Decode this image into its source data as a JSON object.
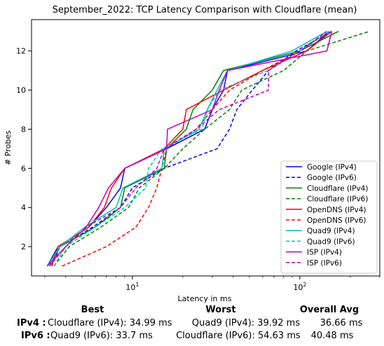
{
  "chart_data": {
    "type": "line",
    "title": "September_2022: TCP Latency Comparison with Cloudflare (mean)",
    "xlabel": "Latency in ms",
    "ylabel": "# Probes",
    "xscale": "log",
    "xlim": [
      2.5,
      300
    ],
    "ylim": [
      0.5,
      13.6
    ],
    "xticks": [
      {
        "value": 10,
        "label": "10^1"
      },
      {
        "value": 100,
        "label": "10^2"
      }
    ],
    "yticks": [
      2,
      4,
      6,
      8,
      10,
      12
    ],
    "grid": false,
    "legend_position": "lower-right",
    "series": [
      {
        "name": "Google (IPv4)",
        "color": "#0000ff",
        "dash": false,
        "points": [
          [
            3.1,
            1
          ],
          [
            3.6,
            2
          ],
          [
            5.5,
            3
          ],
          [
            7,
            4
          ],
          [
            8.5,
            5
          ],
          [
            9,
            6
          ],
          [
            16,
            7
          ],
          [
            27,
            8
          ],
          [
            30,
            9
          ],
          [
            35,
            10
          ],
          [
            37,
            11
          ],
          [
            110,
            12
          ],
          [
            150,
            13
          ]
        ]
      },
      {
        "name": "Google (IPv6)",
        "color": "#0000ff",
        "dash": true,
        "points": [
          [
            3.3,
            1
          ],
          [
            3.7,
            2
          ],
          [
            5.8,
            3
          ],
          [
            8.5,
            4
          ],
          [
            10,
            5
          ],
          [
            15.5,
            6
          ],
          [
            32,
            7
          ],
          [
            38,
            8
          ],
          [
            42,
            9
          ],
          [
            52,
            10
          ],
          [
            65,
            11
          ],
          [
            95,
            12
          ],
          [
            155,
            13
          ]
        ]
      },
      {
        "name": "Cloudflare (IPv4)",
        "color": "#008000",
        "dash": false,
        "points": [
          [
            3.2,
            1
          ],
          [
            3.7,
            2
          ],
          [
            6,
            3
          ],
          [
            8.5,
            4
          ],
          [
            9,
            5
          ],
          [
            15.5,
            6
          ],
          [
            16,
            7
          ],
          [
            21,
            8
          ],
          [
            23,
            9
          ],
          [
            30,
            10
          ],
          [
            35,
            11
          ],
          [
            100,
            12
          ],
          [
            170,
            13
          ]
        ]
      },
      {
        "name": "Cloudflare (IPv6)",
        "color": "#008000",
        "dash": true,
        "points": [
          [
            3.4,
            1
          ],
          [
            4.2,
            2
          ],
          [
            6.5,
            3
          ],
          [
            9.5,
            4
          ],
          [
            11,
            5
          ],
          [
            15.5,
            6
          ],
          [
            20,
            7
          ],
          [
            27,
            8
          ],
          [
            38,
            9
          ],
          [
            45,
            10
          ],
          [
            80,
            11
          ],
          [
            110,
            12
          ],
          [
            260,
            13
          ]
        ]
      },
      {
        "name": "OpenDNS (IPv4)",
        "color": "#ff0000",
        "dash": false,
        "points": [
          [
            3.3,
            1
          ],
          [
            3.6,
            2
          ],
          [
            5.5,
            3
          ],
          [
            6.8,
            4
          ],
          [
            7.5,
            5
          ],
          [
            9,
            6
          ],
          [
            15.5,
            7
          ],
          [
            20,
            8
          ],
          [
            21,
            9
          ],
          [
            35,
            10
          ],
          [
            60,
            11
          ],
          [
            110,
            12
          ],
          [
            155,
            13
          ]
        ]
      },
      {
        "name": "OpenDNS (IPv6)",
        "color": "#ff0000",
        "dash": true,
        "points": [
          [
            3.8,
            1
          ],
          [
            7,
            2
          ],
          [
            10.5,
            3
          ],
          [
            12.5,
            4
          ],
          [
            14,
            5
          ],
          [
            15,
            6
          ],
          [
            16,
            7
          ],
          [
            24,
            8
          ],
          [
            30,
            9
          ],
          [
            38,
            10
          ],
          [
            60,
            11
          ],
          [
            100,
            12
          ],
          [
            150,
            13
          ]
        ]
      },
      {
        "name": "Quad9 (IPv4)",
        "color": "#00bfbf",
        "dash": false,
        "points": [
          [
            3.1,
            1
          ],
          [
            3.7,
            2
          ],
          [
            5.2,
            3
          ],
          [
            8,
            4
          ],
          [
            8.8,
            5
          ],
          [
            15,
            6
          ],
          [
            15.5,
            7
          ],
          [
            25,
            8
          ],
          [
            28,
            9
          ],
          [
            32,
            10
          ],
          [
            37,
            11
          ],
          [
            90,
            12
          ],
          [
            145,
            13
          ]
        ]
      },
      {
        "name": "Quad9 (IPv6)",
        "color": "#00bfbf",
        "dash": true,
        "points": [
          [
            3.4,
            1
          ],
          [
            4,
            2
          ],
          [
            6,
            3
          ],
          [
            9,
            4
          ],
          [
            12,
            5
          ],
          [
            12.5,
            6
          ],
          [
            15,
            7
          ],
          [
            26,
            8
          ],
          [
            28,
            9
          ],
          [
            33,
            10
          ],
          [
            65,
            11
          ],
          [
            100,
            12
          ],
          [
            150,
            13
          ]
        ]
      },
      {
        "name": "ISP (IPv4)",
        "color": "#bf00bf",
        "dash": false,
        "points": [
          [
            3.1,
            1
          ],
          [
            4,
            2
          ],
          [
            5.3,
            3
          ],
          [
            6.3,
            4
          ],
          [
            7.2,
            5
          ],
          [
            9,
            6
          ],
          [
            16,
            7
          ],
          [
            16.2,
            8
          ],
          [
            30,
            9
          ],
          [
            33,
            10
          ],
          [
            37,
            11
          ],
          [
            145,
            12
          ],
          [
            155,
            13
          ]
        ]
      },
      {
        "name": "ISP (IPv6)",
        "color": "#bf00bf",
        "dash": true,
        "points": [
          [
            3.2,
            1
          ],
          [
            4,
            2
          ],
          [
            5.3,
            3
          ],
          [
            8.5,
            4
          ],
          [
            10.5,
            5
          ],
          [
            14,
            6
          ],
          [
            15.5,
            7
          ],
          [
            24,
            8
          ],
          [
            33,
            9
          ],
          [
            65,
            10
          ],
          [
            65,
            11
          ],
          [
            100,
            12
          ],
          [
            145,
            13
          ]
        ]
      }
    ]
  },
  "summary": {
    "headers": {
      "best": "Best",
      "worst": "Worst",
      "avg": "Overall Avg"
    },
    "rows": [
      {
        "label": "IPv4 :",
        "best": "Cloudflare (IPv4): 34.99 ms",
        "worst": "Quad9 (IPv4): 39.92 ms",
        "avg": "36.66 ms"
      },
      {
        "label": "IPv6 :",
        "best": "Quad9 (IPv6): 33.7 ms",
        "worst": "Cloudflare (IPv6): 54.63 ms",
        "avg": "40.48 ms"
      }
    ]
  }
}
